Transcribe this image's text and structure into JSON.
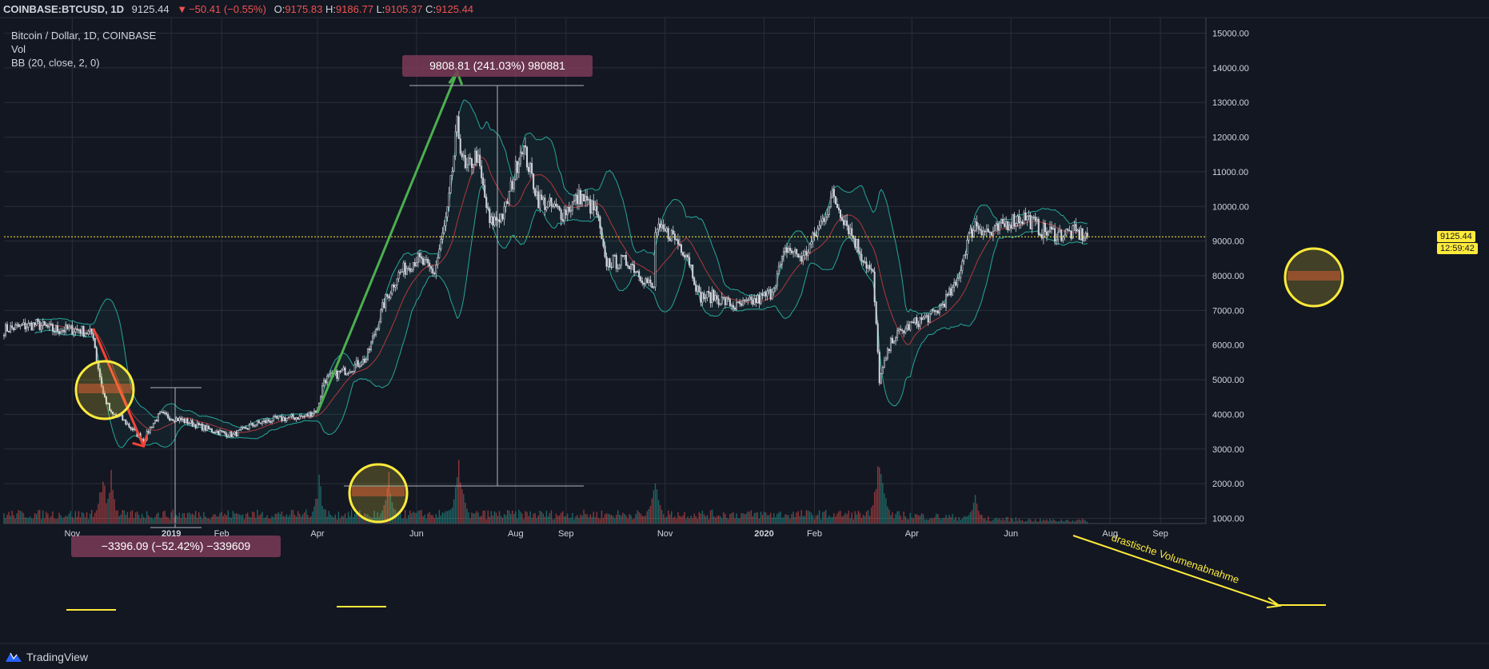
{
  "header": {
    "symbol": "COINBASE:BTCUSD, 1D",
    "last": "9125.44",
    "arrow": "▼",
    "change": "−50.41 (−0.55%)",
    "open_label": "O:",
    "open": "9175.83",
    "high_label": "H:",
    "high": "9186.77",
    "low_label": "L:",
    "low": "9105.37",
    "close_label": "C:",
    "close": "9125.44"
  },
  "legend": {
    "title": "Bitcoin / Dollar, 1D, COINBASE",
    "vol": "Vol",
    "bb": "BB (20, close, 2, 0)"
  },
  "price_scale": {
    "current_price": "9125.44",
    "countdown": "12:59:42"
  },
  "annotations": {
    "up_measure": "9808.81 (241.03%) 980881",
    "down_measure": "−3396.09 (−52.42%) −339609",
    "volume_note": "drastische Volumenabnahme"
  },
  "brand": {
    "name": "TradingView"
  },
  "colors": {
    "background": "#131722",
    "grid": "#2a2e39",
    "candle": "#d1d4dc",
    "bb_band": "#26a69a",
    "bb_basis": "#b2373c",
    "up_arrow": "#4caf50",
    "down_arrow": "#f44336",
    "highlight_circle": "#ffeb3b",
    "measure_label_bg": "#7b3b57",
    "vol_up": "#26a69a",
    "vol_down": "#ef5350",
    "price_line": "#ffeb3b"
  },
  "chart_data": {
    "type": "candlestick",
    "title": "Bitcoin / Dollar, 1D, COINBASE",
    "y_ticks": [
      1000,
      2000,
      3000,
      4000,
      5000,
      6000,
      7000,
      8000,
      9000,
      10000,
      11000,
      12000,
      13000,
      14000,
      15000
    ],
    "y_tick_labels": [
      "1000.00",
      "2000.00",
      "3000.00",
      "4000.00",
      "5000.00",
      "6000.00",
      "7000.00",
      "8000.00",
      "9000.00",
      "10000.00",
      "11000.00",
      "12000.00",
      "13000.00",
      "14000.00",
      "15000.00"
    ],
    "x_ticks": [
      {
        "date": "2018-11-01",
        "label": "Nov",
        "bold": false
      },
      {
        "date": "2019-01-01",
        "label": "2019",
        "bold": true
      },
      {
        "date": "2019-02-01",
        "label": "Feb",
        "bold": false
      },
      {
        "date": "2019-04-01",
        "label": "Apr",
        "bold": false
      },
      {
        "date": "2019-06-01",
        "label": "Jun",
        "bold": false
      },
      {
        "date": "2019-08-01",
        "label": "Aug",
        "bold": false
      },
      {
        "date": "2019-09-01",
        "label": "Sep",
        "bold": false
      },
      {
        "date": "2019-11-01",
        "label": "Nov",
        "bold": false
      },
      {
        "date": "2020-01-01",
        "label": "2020",
        "bold": true
      },
      {
        "date": "2020-02-01",
        "label": "Feb",
        "bold": false
      },
      {
        "date": "2020-04-01",
        "label": "Apr",
        "bold": false
      },
      {
        "date": "2020-06-01",
        "label": "Jun",
        "bold": false
      },
      {
        "date": "2020-08-01",
        "label": "Aug",
        "bold": false
      },
      {
        "date": "2020-09-01",
        "label": "Sep",
        "bold": false
      }
    ],
    "x_range": [
      "2018-09-20",
      "2020-09-29"
    ],
    "y_range": [
      850,
      15450
    ],
    "last_date": "2020-07-18",
    "price_path": [
      [
        "2018-09-20",
        6450
      ],
      [
        "2018-10-10",
        6600
      ],
      [
        "2018-10-20",
        6450
      ],
      [
        "2018-11-05",
        6450
      ],
      [
        "2018-11-14",
        6300
      ],
      [
        "2018-11-16",
        5600
      ],
      [
        "2018-11-20",
        4600
      ],
      [
        "2018-11-25",
        4000
      ],
      [
        "2018-12-01",
        3900
      ],
      [
        "2018-12-15",
        3250
      ],
      [
        "2018-12-20",
        3700
      ],
      [
        "2018-12-25",
        4000
      ],
      [
        "2019-01-10",
        3800
      ],
      [
        "2019-01-25",
        3550
      ],
      [
        "2019-02-08",
        3400
      ],
      [
        "2019-02-20",
        3700
      ],
      [
        "2019-03-05",
        3850
      ],
      [
        "2019-03-25",
        3950
      ],
      [
        "2019-04-01",
        4150
      ],
      [
        "2019-04-05",
        5000
      ],
      [
        "2019-04-20",
        5300
      ],
      [
        "2019-05-01",
        5600
      ],
      [
        "2019-05-12",
        7200
      ],
      [
        "2019-05-20",
        8000
      ],
      [
        "2019-06-01",
        8500
      ],
      [
        "2019-06-12",
        8100
      ],
      [
        "2019-06-20",
        9800
      ],
      [
        "2019-06-26",
        12300
      ],
      [
        "2019-07-01",
        11000
      ],
      [
        "2019-07-08",
        11500
      ],
      [
        "2019-07-16",
        9500
      ],
      [
        "2019-07-25",
        9800
      ],
      [
        "2019-08-05",
        11800
      ],
      [
        "2019-08-15",
        10200
      ],
      [
        "2019-08-30",
        9800
      ],
      [
        "2019-09-10",
        10300
      ],
      [
        "2019-09-20",
        9800
      ],
      [
        "2019-09-25",
        8400
      ],
      [
        "2019-10-10",
        8400
      ],
      [
        "2019-10-25",
        7600
      ],
      [
        "2019-10-26",
        9300
      ],
      [
        "2019-11-05",
        9200
      ],
      [
        "2019-11-15",
        8600
      ],
      [
        "2019-11-22",
        7400
      ],
      [
        "2019-12-01",
        7400
      ],
      [
        "2019-12-15",
        7100
      ],
      [
        "2019-12-28",
        7300
      ],
      [
        "2020-01-05",
        7500
      ],
      [
        "2020-01-15",
        8800
      ],
      [
        "2020-01-25",
        8500
      ],
      [
        "2020-02-05",
        9500
      ],
      [
        "2020-02-12",
        10300
      ],
      [
        "2020-02-20",
        9600
      ],
      [
        "2020-03-01",
        8600
      ],
      [
        "2020-03-08",
        8000
      ],
      [
        "2020-03-12",
        5000
      ],
      [
        "2020-03-20",
        6200
      ],
      [
        "2020-04-01",
        6600
      ],
      [
        "2020-04-15",
        6900
      ],
      [
        "2020-04-28",
        7700
      ],
      [
        "2020-05-05",
        9000
      ],
      [
        "2020-05-10",
        9500
      ],
      [
        "2020-05-20",
        9200
      ],
      [
        "2020-06-01",
        9600
      ],
      [
        "2020-06-10",
        9700
      ],
      [
        "2020-06-20",
        9300
      ],
      [
        "2020-07-01",
        9200
      ],
      [
        "2020-07-10",
        9250
      ],
      [
        "2020-07-18",
        9125
      ]
    ],
    "volume_peaks": [
      [
        "2018-11-20",
        2300
      ],
      [
        "2018-11-25",
        2000
      ],
      [
        "2019-04-02",
        2000
      ],
      [
        "2019-05-15",
        1900
      ],
      [
        "2019-06-27",
        3000
      ],
      [
        "2019-10-26",
        2300
      ],
      [
        "2020-03-12",
        3300
      ],
      [
        "2020-03-13",
        2900
      ],
      [
        "2020-05-10",
        2100
      ]
    ],
    "measures": [
      {
        "from": [
          "2019-04-01",
          4050
        ],
        "to": [
          "2019-06-26",
          13880
        ],
        "label": "9808.81 (241.03%) 980881"
      },
      {
        "from": [
          "2018-11-14",
          6480
        ],
        "to": [
          "2018-12-15",
          3080
        ],
        "label": "−3396.09 (−52.42%) −339609"
      }
    ],
    "current_price": 9125.44
  }
}
